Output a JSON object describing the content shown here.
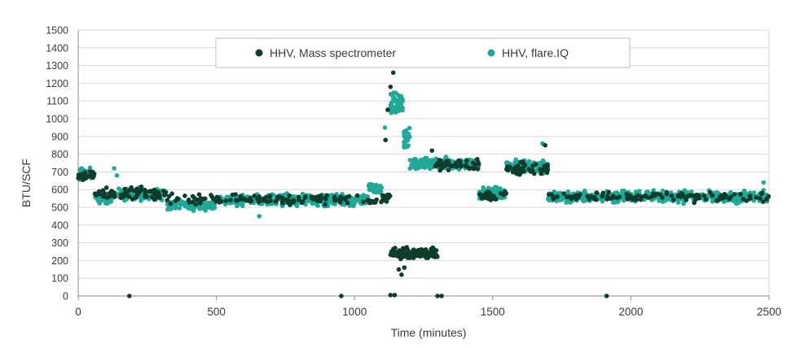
{
  "chart_data": {
    "type": "scatter",
    "xlabel": "Time (minutes)",
    "ylabel": "BTU/SCF",
    "xlim": [
      0,
      2500
    ],
    "ylim": [
      0,
      1500
    ],
    "xticks": [
      "0",
      "500",
      "1000",
      "1500",
      "2000",
      "2500"
    ],
    "yticks": [
      "0",
      "100",
      "200",
      "300",
      "400",
      "500",
      "600",
      "700",
      "800",
      "900",
      "1000",
      "1100",
      "1200",
      "1300",
      "1400",
      "1500"
    ],
    "grid": "horizontal",
    "legend_position": "top-center",
    "colors": {
      "mass_spec": "#0f3d2c",
      "flare_iq": "#1fa996",
      "grid": "#d9d9d9"
    },
    "series": [
      {
        "name": "HHV, Mass spectrometer",
        "color": "#0f3d2c",
        "segments": [
          {
            "x": [
              0,
              60
            ],
            "mean": 680,
            "spread": 35,
            "points": 30
          },
          {
            "x": [
              60,
              320
            ],
            "mean": 580,
            "spread": 50,
            "points": 70
          },
          {
            "x": [
              320,
              1120
            ],
            "mean": 545,
            "spread": 40,
            "points": 140
          },
          {
            "x": [
              1100,
              1130
            ],
            "mean": 560,
            "spread": 20,
            "points": 12
          },
          {
            "x": [
              1130,
              1300
            ],
            "mean": 240,
            "spread": 40,
            "points": 160
          },
          {
            "x": [
              1290,
              1450
            ],
            "mean": 740,
            "spread": 40,
            "points": 40
          },
          {
            "x": [
              1450,
              1550
            ],
            "mean": 570,
            "spread": 40,
            "points": 25
          },
          {
            "x": [
              1550,
              1700
            ],
            "mean": 720,
            "spread": 50,
            "points": 40
          },
          {
            "x": [
              1700,
              2500
            ],
            "mean": 560,
            "spread": 40,
            "points": 120
          }
        ],
        "outliers": [
          [
            185,
            0
          ],
          [
            952,
            0
          ],
          [
            1130,
            5
          ],
          [
            1145,
            5
          ],
          [
            1300,
            0
          ],
          [
            1315,
            0
          ],
          [
            1912,
            0
          ],
          [
            1112,
            880
          ],
          [
            1120,
            1050
          ],
          [
            1130,
            1180
          ],
          [
            1140,
            1260
          ],
          [
            1160,
            150
          ],
          [
            1170,
            120
          ],
          [
            1180,
            160
          ],
          [
            1280,
            820
          ],
          [
            1340,
            710
          ],
          [
            1650,
            690
          ],
          [
            1690,
            850
          ]
        ]
      },
      {
        "name": "HHV, flare.IQ",
        "color": "#1fa996",
        "segments": [
          {
            "x": [
              0,
              60
            ],
            "mean": 690,
            "spread": 45,
            "points": 50
          },
          {
            "x": [
              60,
              120
            ],
            "mean": 550,
            "spread": 40,
            "points": 40
          },
          {
            "x": [
              120,
              320
            ],
            "mean": 575,
            "spread": 45,
            "points": 120
          },
          {
            "x": [
              320,
              500
            ],
            "mean": 515,
            "spread": 40,
            "points": 110
          },
          {
            "x": [
              500,
              1050
            ],
            "mean": 540,
            "spread": 45,
            "points": 320
          },
          {
            "x": [
              1050,
              1100
            ],
            "mean": 600,
            "spread": 40,
            "points": 30
          },
          {
            "x": [
              1130,
              1175
            ],
            "mean": 1080,
            "spread": 100,
            "points": 50
          },
          {
            "x": [
              1175,
              1200
            ],
            "mean": 880,
            "spread": 100,
            "points": 25
          },
          {
            "x": [
              1200,
              1450
            ],
            "mean": 745,
            "spread": 45,
            "points": 220
          },
          {
            "x": [
              1450,
              1550
            ],
            "mean": 580,
            "spread": 45,
            "points": 70
          },
          {
            "x": [
              1550,
              1700
            ],
            "mean": 730,
            "spread": 55,
            "points": 130
          },
          {
            "x": [
              1700,
              2500
            ],
            "mean": 560,
            "spread": 45,
            "points": 480
          }
        ],
        "outliers": [
          [
            130,
            720
          ],
          [
            140,
            680
          ],
          [
            655,
            450
          ],
          [
            1110,
            950
          ],
          [
            1680,
            860
          ],
          [
            2480,
            640
          ]
        ]
      }
    ]
  }
}
